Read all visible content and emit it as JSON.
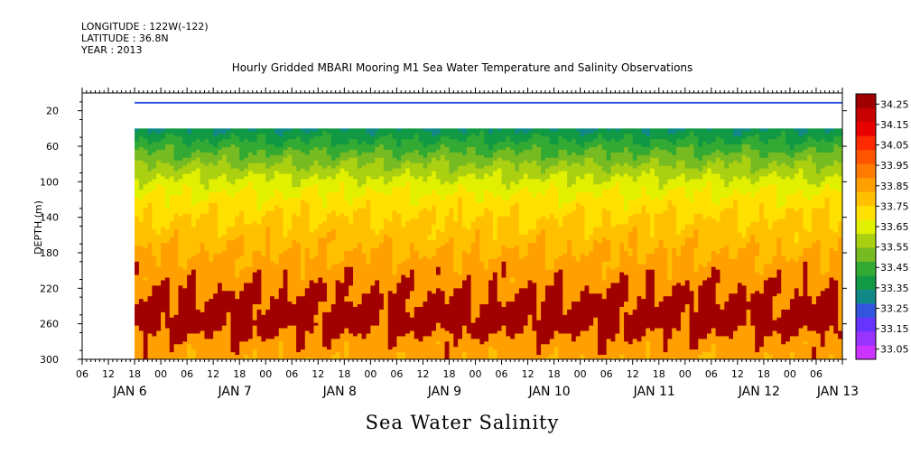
{
  "header": {
    "longitude": "LONGITUDE : 122W(-122)",
    "latitude": "LATITUDE : 36.8N",
    "year": "YEAR : 2013"
  },
  "chart_data": {
    "type": "heatmap",
    "title": "Hourly Gridded MBARI Mooring M1 Sea Water Temperature and Salinity Observations",
    "subtitle": "Sea Water Salinity",
    "ylabel": "DEPTH (m)",
    "xlabel": "",
    "xlim_hours": [
      0,
      174
    ],
    "ylim": [
      300,
      0
    ],
    "y_reversed": true,
    "y_ticks": [
      20,
      60,
      100,
      140,
      180,
      220,
      260,
      300
    ],
    "x_hour_labels": [
      "06",
      "12",
      "18",
      "00",
      "06",
      "12",
      "18",
      "00",
      "06",
      "12",
      "18",
      "00",
      "06",
      "12",
      "18",
      "00",
      "06",
      "12",
      "18",
      "00",
      "06",
      "12",
      "18",
      "00",
      "06",
      "12",
      "18",
      "00",
      "06"
    ],
    "day_labels": [
      {
        "text": "JAN  6",
        "hour": 6
      },
      {
        "text": "JAN  7",
        "hour": 30
      },
      {
        "text": "JAN  8",
        "hour": 54
      },
      {
        "text": "JAN  9",
        "hour": 78
      },
      {
        "text": "JAN 10",
        "hour": 102
      },
      {
        "text": "JAN 11",
        "hour": 126
      },
      {
        "text": "JAN 12",
        "hour": 150
      },
      {
        "text": "JAN 13",
        "hour": 168
      }
    ],
    "data_start_hour": 12,
    "surface_layer": {
      "depth_range": [
        10,
        12
      ],
      "value": 33.25
    },
    "data_gap_depth": [
      12,
      40
    ],
    "colorbar": {
      "levels": [
        33.05,
        33.15,
        33.25,
        33.35,
        33.45,
        33.55,
        33.65,
        33.75,
        33.85,
        33.95,
        34.05,
        34.15,
        34.25
      ],
      "colors": [
        "#cc33ff",
        "#9933ff",
        "#6633ff",
        "#3355dd",
        "#118888",
        "#119944",
        "#33aa33",
        "#77bb22",
        "#aad011",
        "#e0f000",
        "#ffe000",
        "#ffc000",
        "#ffa000",
        "#ff7a00",
        "#ff5500",
        "#ff2a00",
        "#e80000",
        "#c80000",
        "#a00000"
      ]
    },
    "depth_profile": [
      {
        "depth": 40,
        "value": 33.45
      },
      {
        "depth": 60,
        "value": 33.6
      },
      {
        "depth": 80,
        "value": 33.75
      },
      {
        "depth": 100,
        "value": 33.88
      },
      {
        "depth": 120,
        "value": 33.98
      },
      {
        "depth": 140,
        "value": 34.05
      },
      {
        "depth": 160,
        "value": 34.1
      },
      {
        "depth": 180,
        "value": 34.15
      },
      {
        "depth": 200,
        "value": 34.2
      },
      {
        "depth": 220,
        "value": 34.24
      },
      {
        "depth": 240,
        "value": 34.28
      },
      {
        "depth": 260,
        "value": 34.3
      },
      {
        "depth": 280,
        "value": 34.22
      },
      {
        "depth": 300,
        "value": 34.18
      }
    ]
  }
}
